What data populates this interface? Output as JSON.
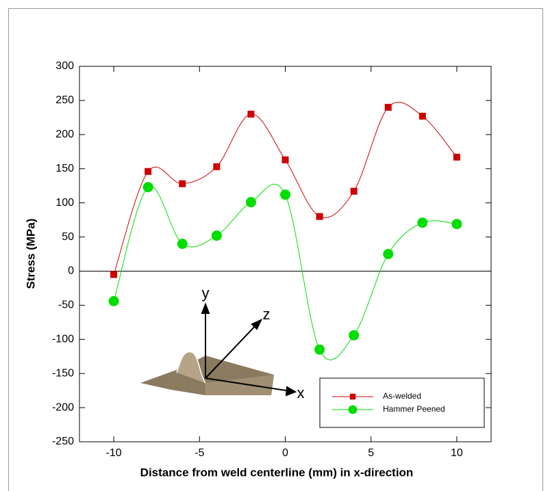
{
  "chart_data": {
    "type": "line",
    "x_label": "Distance from weld centerline (mm) in x-direction",
    "y_label": "Stress (MPa)",
    "x": [
      -10,
      -8,
      -6,
      -4,
      -2,
      0,
      2,
      4,
      6,
      8,
      10
    ],
    "series": [
      {
        "name": "As-welded",
        "color": "#cc0000",
        "marker": "square",
        "values": [
          -5,
          146,
          128,
          153,
          230,
          163,
          80,
          117,
          240,
          227,
          167
        ]
      },
      {
        "name": "Hammer Peened",
        "color": "#00dd00",
        "marker": "circle",
        "values": [
          -44,
          123,
          40,
          52,
          101,
          112,
          -115,
          -94,
          25,
          71,
          69
        ]
      }
    ],
    "xlim": [
      -12,
      12
    ],
    "xticks": [
      -10,
      -5,
      0,
      5,
      10
    ],
    "ylim": [
      -250,
      300
    ],
    "yticks": [
      -250,
      -200,
      -150,
      -100,
      -50,
      0,
      50,
      100,
      150,
      200,
      250,
      300
    ],
    "annotations": [
      "y",
      "z",
      "x"
    ],
    "legend": "lower right"
  }
}
